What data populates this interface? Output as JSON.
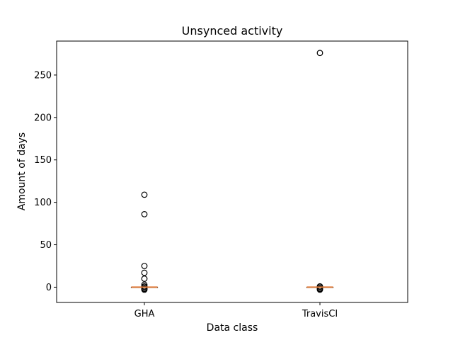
{
  "chart_data": {
    "type": "boxplot",
    "title": "Unsynced activity",
    "xlabel": "Data class",
    "ylabel": "Amount of days",
    "categories": [
      "GHA",
      "TravisCI"
    ],
    "ylim": [
      -18,
      290
    ],
    "yticks": [
      0,
      50,
      100,
      150,
      200,
      250
    ],
    "grid": false,
    "median_color": "#e07b39",
    "series": [
      {
        "category": "GHA",
        "median": 0,
        "q1": 0,
        "q3": 0,
        "whisker_low": 0,
        "whisker_high": 0,
        "outliers": [
          109,
          86,
          25,
          17,
          10,
          3,
          1,
          0.5,
          -1,
          -2,
          -3
        ]
      },
      {
        "category": "TravisCI",
        "median": 0,
        "q1": 0,
        "q3": 0,
        "whisker_low": 0,
        "whisker_high": 0,
        "outliers": [
          276,
          1,
          0.5,
          -1,
          -2,
          -3
        ]
      }
    ]
  }
}
